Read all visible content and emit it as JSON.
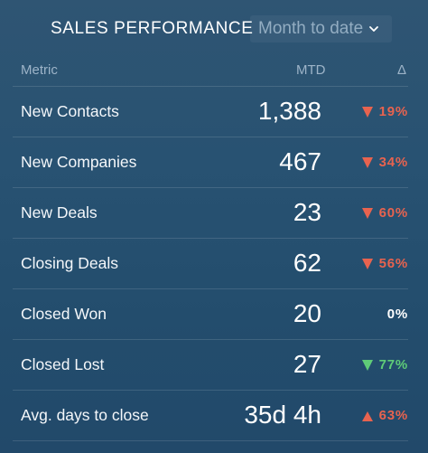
{
  "header": {
    "title": "SALES PERFORMANCE",
    "period_select": {
      "selected": "Month to date"
    }
  },
  "columns": {
    "metric": "Metric",
    "mtd": "MTD",
    "delta": "Δ"
  },
  "rows": [
    {
      "label": "New Contacts",
      "value": "1,388",
      "delta": "19%",
      "direction": "down",
      "tone": "negative"
    },
    {
      "label": "New Companies",
      "value": "467",
      "delta": "34%",
      "direction": "down",
      "tone": "negative"
    },
    {
      "label": "New Deals",
      "value": "23",
      "delta": "60%",
      "direction": "down",
      "tone": "negative"
    },
    {
      "label": "Closing Deals",
      "value": "62",
      "delta": "56%",
      "direction": "down",
      "tone": "negative"
    },
    {
      "label": "Closed Won",
      "value": "20",
      "delta": "0%",
      "direction": "none",
      "tone": "neutral"
    },
    {
      "label": "Closed Lost",
      "value": "27",
      "delta": "77%",
      "direction": "down",
      "tone": "positive"
    },
    {
      "label": "Avg. days to close",
      "value": "35d 4h",
      "delta": "63%",
      "direction": "up",
      "tone": "negative"
    }
  ],
  "colors": {
    "negative": "#e8634f",
    "positive": "#5fcc78",
    "neutral": "#ffffff",
    "background_top": "#2f5573",
    "background_bottom": "#22496a"
  },
  "icons": {
    "period_select": "chevron-down-icon",
    "down": "triangle-down-icon",
    "up": "triangle-up-icon"
  }
}
